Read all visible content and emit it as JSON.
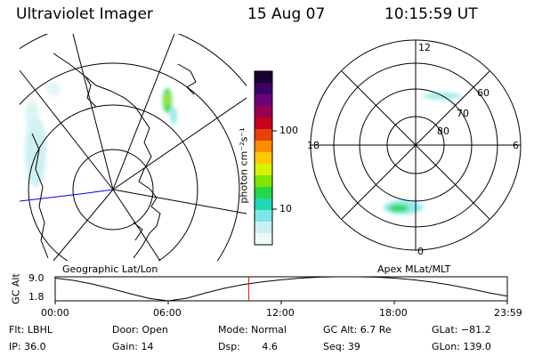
{
  "header": {
    "instrument": "Ultraviolet Imager",
    "date": "15 Aug 07",
    "time": "10:15:59 UT"
  },
  "colorbar": {
    "unit_label": "photon cm⁻²s⁻¹",
    "ticks": [
      "100",
      "10"
    ],
    "colors": [
      "#1a0033",
      "#3d0066",
      "#6e007a",
      "#9a0050",
      "#c8001e",
      "#e8400a",
      "#ff8c00",
      "#ffc800",
      "#d8f000",
      "#7ee600",
      "#22d94a",
      "#1ed9b4",
      "#7fe6e6",
      "#c8f0f0",
      "#eef8f8"
    ]
  },
  "geographic_panel": {
    "label": "Geographic Lat/Lon"
  },
  "apex_panel": {
    "label": "Apex MLat/MLT",
    "mlt_labels": {
      "top": "12",
      "left": "18",
      "right": "6",
      "bottom": "0"
    },
    "lat_labels": [
      "60",
      "70",
      "80"
    ]
  },
  "chart_data": {
    "type": "line",
    "ylabel": "GC Alt",
    "yticks": [
      "9.0",
      "1.8"
    ],
    "ylim": [
      1.8,
      9.0
    ],
    "x_tick_labels": [
      "00:00",
      "06:00",
      "12:00",
      "18:00",
      "23:59"
    ],
    "x_hours": [
      0,
      1,
      2,
      3,
      4,
      5,
      6,
      7,
      8,
      9,
      10,
      11,
      12,
      13,
      14,
      15,
      16,
      17,
      18,
      19,
      20,
      21,
      22,
      23,
      23.98
    ],
    "gc_alt": [
      8.6,
      7.9,
      6.8,
      5.4,
      3.9,
      2.5,
      1.8,
      2.6,
      4.2,
      5.6,
      6.7,
      7.5,
      8.1,
      8.6,
      8.9,
      9.0,
      9.0,
      8.9,
      8.6,
      8.1,
      7.4,
      6.5,
      5.4,
      4.2,
      3.2
    ],
    "current_time_hours": 10.27,
    "colors": {
      "line": "#000000",
      "marker": "#ff0000"
    }
  },
  "status": {
    "flt": "Flt: LBHL",
    "ip": "IP: 36.0",
    "door": "Door: Open",
    "gain": "Gain: 14",
    "mode": "Mode: Normal",
    "dsp": "Dsp:       4.6",
    "gc_alt": "GC Alt: 6.7 Re",
    "seq": "Seq: 39",
    "glat": "GLat: −81.2",
    "glon": "GLon: 139.0"
  }
}
